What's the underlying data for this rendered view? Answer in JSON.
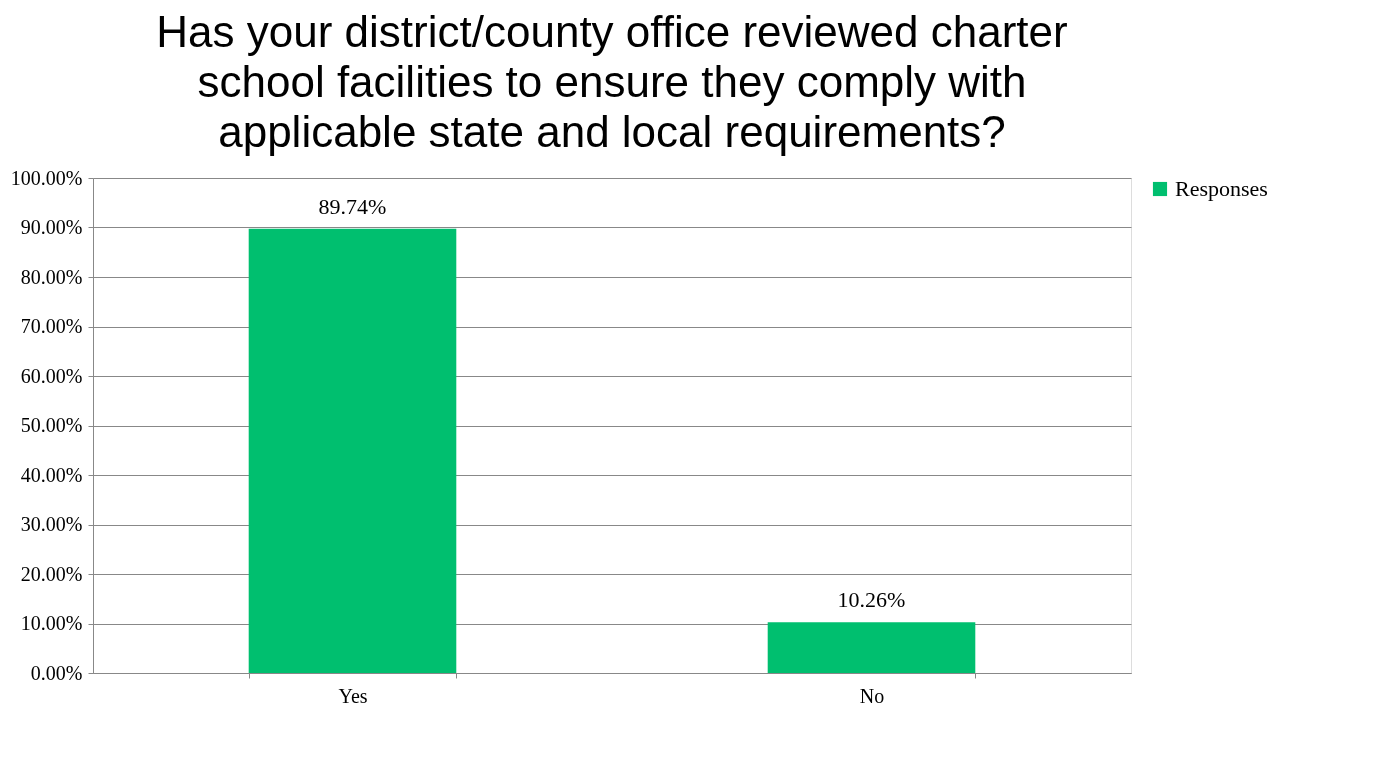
{
  "chart_data": {
    "type": "bar",
    "title": "Has your district/county office reviewed charter school facilities to ensure they comply with applicable state and local requirements?",
    "categories": [
      "Yes",
      "No"
    ],
    "series": [
      {
        "name": "Responses",
        "color": "#00bf6f",
        "values": [
          89.74,
          10.26
        ],
        "value_labels": [
          "89.74%",
          "10.26%"
        ]
      }
    ],
    "ylim": [
      0,
      100
    ],
    "yticks": [
      {
        "value": 0,
        "label": "0.00%"
      },
      {
        "value": 10,
        "label": "10.00%"
      },
      {
        "value": 20,
        "label": "20.00%"
      },
      {
        "value": 30,
        "label": "30.00%"
      },
      {
        "value": 40,
        "label": "40.00%"
      },
      {
        "value": 50,
        "label": "50.00%"
      },
      {
        "value": 60,
        "label": "60.00%"
      },
      {
        "value": 70,
        "label": "70.00%"
      },
      {
        "value": 80,
        "label": "80.00%"
      },
      {
        "value": 90,
        "label": "90.00%"
      },
      {
        "value": 100,
        "label": "100.00%"
      }
    ],
    "grid": "y",
    "legend": "right"
  }
}
